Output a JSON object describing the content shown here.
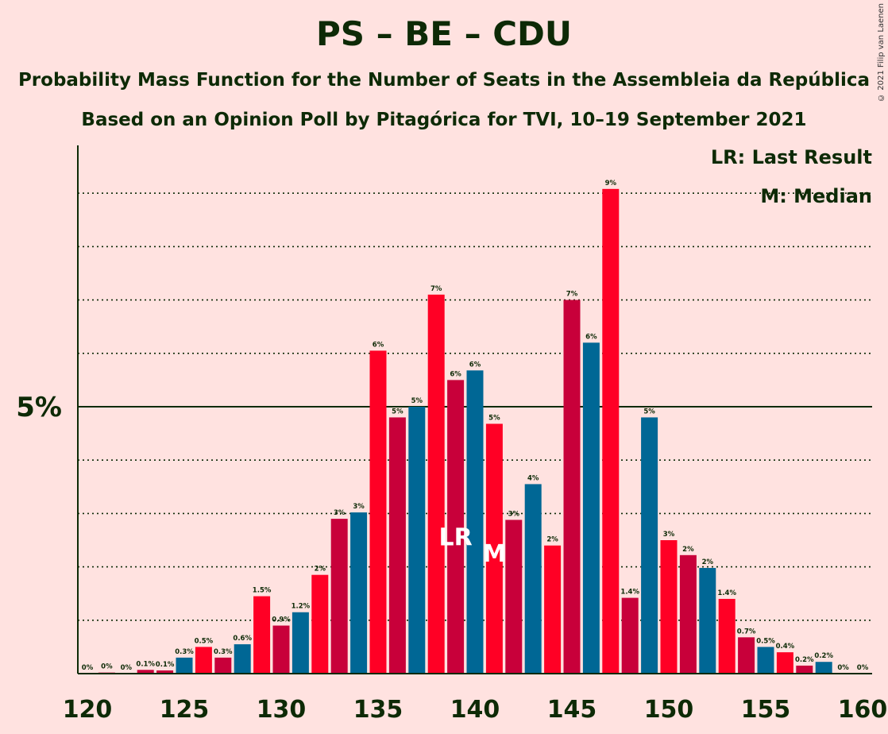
{
  "title": "PS – BE – CDU",
  "subtitle1": "Probability Mass Function for the Number of Seats in the Assembleia da República",
  "subtitle2": "Based on an Opinion Poll by Pitagórica for TVI, 10–19 September 2021",
  "copyright": "© 2021 Filip van Laenen",
  "legend": {
    "last_result": "LR: Last Result",
    "median": "M: Median"
  },
  "colors": {
    "red1": "#ff0025",
    "red2": "#c8003a",
    "blue": "#006795",
    "background": "#ffe2e0",
    "text": "#0d2a06"
  },
  "chart_data": {
    "type": "bar",
    "xlabel": "",
    "ylabel": "",
    "x": [
      120,
      121,
      122,
      123,
      124,
      125,
      126,
      127,
      128,
      129,
      130,
      131,
      132,
      133,
      134,
      135,
      136,
      137,
      138,
      139,
      140,
      141,
      142,
      143,
      144,
      145,
      146,
      147,
      148,
      149,
      150,
      151,
      152,
      153,
      154,
      155,
      156,
      157,
      158,
      159,
      160
    ],
    "values": [
      0,
      0.02,
      0,
      0.07,
      0.06,
      0.3,
      0.5,
      0.3,
      0.55,
      1.45,
      0.9,
      1.15,
      1.85,
      2.9,
      3.02,
      6.05,
      4.8,
      5.0,
      7.1,
      5.5,
      5.68,
      4.68,
      2.88,
      3.55,
      2.4,
      7.0,
      6.2,
      9.08,
      1.42,
      4.8,
      2.5,
      2.22,
      1.98,
      1.4,
      0.68,
      0.5,
      0.4,
      0.15,
      0.22,
      0,
      0
    ],
    "labels": [
      "0%",
      "0%",
      "0%",
      "0.1%",
      "0.1%",
      "0.3%",
      "0.5%",
      "0.3%",
      "0.6%",
      "1.5%",
      "0.9%",
      "1.2%",
      "2%",
      "3%",
      "3%",
      "6%",
      "5%",
      "5%",
      "7%",
      "6%",
      "6%",
      "5%",
      "3%",
      "4%",
      "2%",
      "7%",
      "6%",
      "9%",
      "1.4%",
      "5%",
      "3%",
      "2%",
      "2%",
      "1.4%",
      "0.7%",
      "0.5%",
      "0.4%",
      "0.2%",
      "0.2%",
      "0%",
      "0%"
    ],
    "x_ticks": [
      120,
      125,
      130,
      135,
      140,
      145,
      150,
      155,
      160
    ],
    "y_tick_label": "5%",
    "y_major": 5,
    "y_gridlines": [
      1,
      2,
      3,
      4,
      6,
      7,
      8,
      9
    ],
    "ylim": [
      0,
      9.9
    ],
    "last_result_seat": 139,
    "last_result_label": "LR",
    "median_seat": 141,
    "median_label": "M"
  }
}
